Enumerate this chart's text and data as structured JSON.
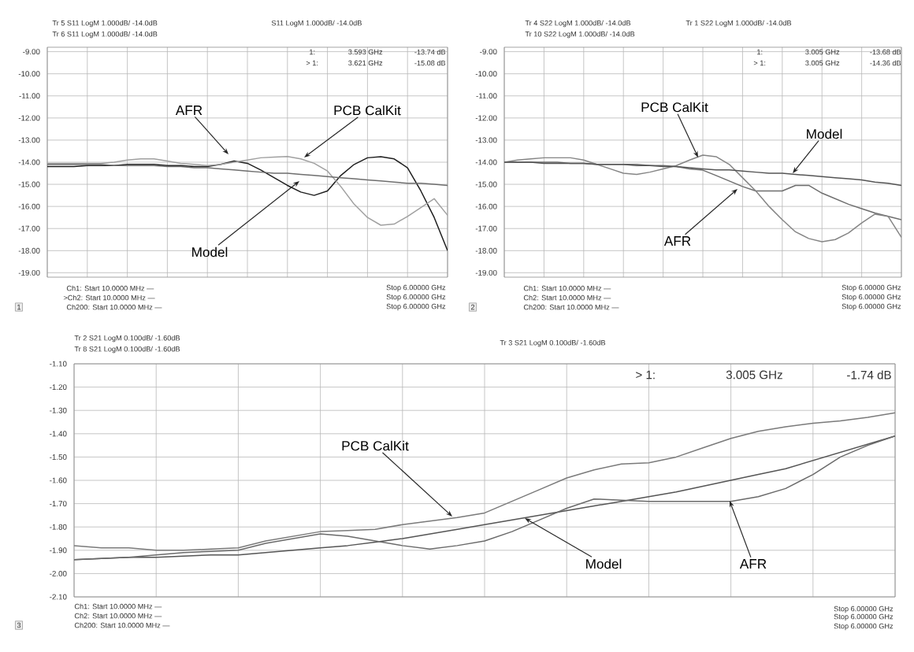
{
  "chart_data": [
    {
      "type": "line",
      "categories": [
        null,
        null,
        null,
        null,
        null,
        null,
        null,
        null,
        null,
        null,
        null,
        null,
        null,
        null,
        null,
        null,
        null,
        null,
        null,
        null,
        null,
        null,
        null,
        null,
        null,
        null,
        null,
        null,
        null,
        null,
        null
      ],
      "ylim": [
        -19.2,
        -8.8
      ],
      "yticks": [
        {
          "value": -9,
          "label": "-9.00"
        },
        {
          "value": -10,
          "label": "-10.00"
        },
        {
          "value": -11,
          "label": "-11.00"
        },
        {
          "value": -12,
          "label": "-12.00"
        },
        {
          "value": -13,
          "label": "-13.00"
        },
        {
          "value": -14,
          "label": "-14.00"
        },
        {
          "value": -15,
          "label": "-15.00"
        },
        {
          "value": -16,
          "label": "-16.00"
        },
        {
          "value": -17,
          "label": "-17.00"
        },
        {
          "value": -18,
          "label": "-18.00"
        },
        {
          "value": -19,
          "label": "-19.00"
        }
      ],
      "grid": true,
      "tick_labels": "y",
      "series": [
        {
          "color": "#1e1e1e",
          "values": [
            -14.2,
            -14.2,
            -14.2,
            -14.15,
            -14.15,
            -14.15,
            -14.1,
            -14.1,
            -14.1,
            -14.15,
            -14.15,
            -14.2,
            -14.2,
            -14.1,
            -13.95,
            -14.05,
            -14.35,
            -14.7,
            -15.05,
            -15.35,
            -15.5,
            -15.3,
            -14.6,
            -14.1,
            -13.8,
            -13.75,
            -13.85,
            -14.25,
            -15.3,
            -16.5,
            -18.0
          ]
        },
        {
          "color": "#a0a0a0",
          "values": [
            -14.05,
            -14.05,
            -14.05,
            -14.05,
            -14.05,
            -14.0,
            -13.9,
            -13.85,
            -13.85,
            -13.95,
            -14.05,
            -14.1,
            -14.15,
            -14.1,
            -14.0,
            -13.9,
            -13.8,
            -13.77,
            -13.74,
            -13.85,
            -14.05,
            -14.4,
            -15.1,
            -15.9,
            -16.5,
            -16.85,
            -16.8,
            -16.45,
            -16.05,
            -15.65,
            -16.4
          ]
        },
        {
          "color": "#6e6e6e",
          "values": [
            -14.1,
            -14.1,
            -14.1,
            -14.1,
            -14.1,
            -14.15,
            -14.15,
            -14.15,
            -14.15,
            -14.2,
            -14.2,
            -14.25,
            -14.25,
            -14.3,
            -14.35,
            -14.4,
            -14.45,
            -14.5,
            -14.5,
            -14.55,
            -14.6,
            -14.65,
            -14.7,
            -14.75,
            -14.8,
            -14.85,
            -14.9,
            -14.95,
            -14.95,
            -15.0,
            -15.05
          ]
        }
      ],
      "annotations": [
        "Tr 5 S11 LogM 1.000dB/ -14.0dB",
        "Tr 6 S11 LogM 1.000dB/ -14.0dB",
        "S11 LogM 1.000dB/ -14.0dB",
        "1:",
        "3.593 GHz",
        "-13.74 dB",
        "> 1:",
        "3.621 GHz",
        "-15.08 dB",
        "Ch1: Start 10.0000 MHz —",
        ">Ch2: Start 10.0000 MHz —",
        "Ch200: Start 10.0000 MHz —",
        "Stop 6.00000 GHz",
        "Stop 6.00000 GHz",
        "Stop 6.00000 GHz",
        "1",
        "AFR",
        "PCB CalKit",
        "Model"
      ]
    },
    {
      "type": "line",
      "categories": [
        null,
        null,
        null,
        null,
        null,
        null,
        null,
        null,
        null,
        null,
        null,
        null,
        null,
        null,
        null,
        null,
        null,
        null,
        null,
        null,
        null,
        null,
        null,
        null,
        null,
        null,
        null,
        null,
        null,
        null,
        null
      ],
      "ylim": [
        -19.2,
        -8.8
      ],
      "yticks": [
        {
          "value": -9,
          "label": "-9.00"
        },
        {
          "value": -10,
          "label": "-10.00"
        },
        {
          "value": -11,
          "label": "-11.00"
        },
        {
          "value": -12,
          "label": "-12.00"
        },
        {
          "value": -13,
          "label": "-13.00"
        },
        {
          "value": -14,
          "label": "-14.00"
        },
        {
          "value": -15,
          "label": "-15.00"
        },
        {
          "value": -16,
          "label": "-16.00"
        },
        {
          "value": -17,
          "label": "-17.00"
        },
        {
          "value": -18,
          "label": "-18.00"
        },
        {
          "value": -19,
          "label": "-19.00"
        }
      ],
      "grid": true,
      "tick_labels": "y",
      "series": [
        {
          "color": "#6e6e6e",
          "values": [
            -14.0,
            -14.0,
            -14.0,
            -14.0,
            -14.0,
            -14.05,
            -14.05,
            -14.1,
            -14.1,
            -14.1,
            -14.1,
            -14.15,
            -14.15,
            -14.2,
            -14.3,
            -14.36,
            -14.6,
            -14.85,
            -15.1,
            -15.3,
            -15.3,
            -15.3,
            -15.05,
            -15.05,
            -15.4,
            -15.65,
            -15.9,
            -16.1,
            -16.3,
            -16.45,
            -16.6
          ]
        },
        {
          "color": "#858585",
          "values": [
            -14.0,
            -13.9,
            -13.85,
            -13.8,
            -13.8,
            -13.8,
            -13.9,
            -14.1,
            -14.3,
            -14.5,
            -14.55,
            -14.45,
            -14.3,
            -14.15,
            -13.9,
            -13.68,
            -13.75,
            -14.1,
            -14.7,
            -15.3,
            -16.0,
            -16.6,
            -17.15,
            -17.45,
            -17.6,
            -17.5,
            -17.2,
            -16.75,
            -16.35,
            -16.45,
            -17.4
          ]
        },
        {
          "color": "#555555",
          "values": [
            -14.0,
            -14.0,
            -14.0,
            -14.05,
            -14.05,
            -14.05,
            -14.05,
            -14.1,
            -14.1,
            -14.1,
            -14.15,
            -14.15,
            -14.2,
            -14.2,
            -14.25,
            -14.3,
            -14.35,
            -14.35,
            -14.4,
            -14.45,
            -14.5,
            -14.5,
            -14.55,
            -14.6,
            -14.65,
            -14.7,
            -14.75,
            -14.8,
            -14.9,
            -14.95,
            -15.05
          ]
        }
      ],
      "annotations": [
        "Tr 4 S22 LogM 1.000dB/ -14.0dB",
        "Tr 10 S22 LogM 1.000dB/ -14.0dB",
        "Tr 1 S22 LogM 1.000dB/ -14.0dB",
        "1:",
        "3.005 GHz",
        "-13.68 dB",
        "> 1:",
        "3.005 GHz",
        "-14.36 dB",
        "Ch1: Start 10.0000 MHz —",
        "Ch2: Start 10.0000 MHz —",
        "Ch200: Start 10.0000 MHz —",
        "Stop 6.00000 GHz",
        "Stop 6.00000 GHz",
        "Stop 6.00000 GHz",
        "2",
        "PCB CalKit",
        "Model",
        "AFR"
      ]
    },
    {
      "type": "line",
      "categories": [
        null,
        null,
        null,
        null,
        null,
        null,
        null,
        null,
        null,
        null,
        null,
        null,
        null,
        null,
        null,
        null,
        null,
        null,
        null,
        null,
        null,
        null,
        null,
        null,
        null,
        null,
        null,
        null,
        null,
        null,
        null
      ],
      "ylim": [
        -2.1,
        -1.1
      ],
      "yticks": [
        {
          "value": -1.1,
          "label": "-1.10"
        },
        {
          "value": -1.2,
          "label": "-1.20"
        },
        {
          "value": -1.3,
          "label": "-1.30"
        },
        {
          "value": -1.4,
          "label": "-1.40"
        },
        {
          "value": -1.5,
          "label": "-1.50"
        },
        {
          "value": -1.6,
          "label": "-1.60"
        },
        {
          "value": -1.7,
          "label": "-1.70"
        },
        {
          "value": -1.8,
          "label": "-1.80"
        },
        {
          "value": -1.9,
          "label": "-1.90"
        },
        {
          "value": -2.0,
          "label": "-2.00"
        },
        {
          "value": -2.1,
          "label": "-2.10"
        }
      ],
      "grid": true,
      "tick_labels": "y",
      "series": [
        {
          "color": "#7a7a7a",
          "values": [
            -1.88,
            -1.89,
            -1.89,
            -1.9,
            -1.9,
            -1.895,
            -1.89,
            -1.86,
            -1.84,
            -1.82,
            -1.815,
            -1.81,
            -1.79,
            -1.775,
            -1.76,
            -1.74,
            -1.69,
            -1.64,
            -1.59,
            -1.555,
            -1.53,
            -1.525,
            -1.5,
            -1.46,
            -1.42,
            -1.39,
            -1.37,
            -1.355,
            -1.345,
            -1.33,
            -1.31
          ]
        },
        {
          "color": "#555555",
          "values": [
            -1.94,
            -1.935,
            -1.93,
            -1.93,
            -1.925,
            -1.92,
            -1.92,
            -1.91,
            -1.9,
            -1.89,
            -1.88,
            -1.865,
            -1.85,
            -1.83,
            -1.81,
            -1.79,
            -1.77,
            -1.75,
            -1.73,
            -1.71,
            -1.69,
            -1.67,
            -1.65,
            -1.625,
            -1.6,
            -1.575,
            -1.55,
            -1.515,
            -1.48,
            -1.445,
            -1.41
          ]
        },
        {
          "color": "#6a6a6a",
          "values": [
            -1.94,
            -1.935,
            -1.93,
            -1.92,
            -1.91,
            -1.905,
            -1.9,
            -1.87,
            -1.85,
            -1.83,
            -1.84,
            -1.86,
            -1.88,
            -1.895,
            -1.88,
            -1.86,
            -1.82,
            -1.77,
            -1.72,
            -1.68,
            -1.685,
            -1.69,
            -1.69,
            -1.69,
            -1.69,
            -1.67,
            -1.635,
            -1.575,
            -1.5,
            -1.45,
            -1.41
          ]
        }
      ],
      "annotations": [
        "Tr 2 S21 LogM 0.100dB/ -1.60dB",
        "Tr 8 S21 LogM 0.100dB/ -1.60dB",
        "Tr 3 S21 LogM 0.100dB/ -1.60dB",
        "> 1:",
        "3.005 GHz",
        "-1.74 dB",
        "Ch1: Start 10.0000 MHz —",
        "Ch2: Start 10.0000 MHz —",
        "Ch200: Start 10.0000 MHz —",
        "Stop 6.00000 GHz",
        "Stop 6.00000 GHz",
        "Stop 6.00000 GHz",
        "3",
        "PCB CalKit",
        "Model",
        "AFR"
      ]
    }
  ]
}
